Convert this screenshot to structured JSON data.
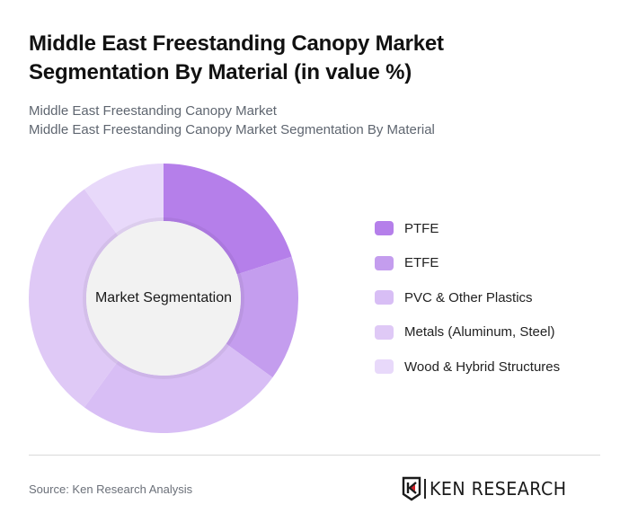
{
  "header": {
    "title": "Middle East Freestanding Canopy Market Segmentation By Material (in value %)",
    "subtitle_line1": "Middle East Freestanding Canopy Market",
    "subtitle_line2": "Middle East Freestanding Canopy Market Segmentation By Material"
  },
  "chart": {
    "center_label": "Market Segmentation"
  },
  "legend": [
    {
      "label": "PTFE",
      "color": "#B57FEA"
    },
    {
      "label": "ETFE",
      "color": "#C49DEE"
    },
    {
      "label": "PVC & Other Plastics",
      "color": "#D8BEF5"
    },
    {
      "label": "Metals (Aluminum, Steel)",
      "color": "#DFC9F6"
    },
    {
      "label": "Wood & Hybrid Structures",
      "color": "#E8D9FA"
    }
  ],
  "footer": {
    "source": "Source: Ken Research Analysis",
    "logo_text": "KEN RESEARCH"
  },
  "chart_data": {
    "type": "pie",
    "subtype": "donut",
    "title": "Middle East Freestanding Canopy Market Segmentation By Material (in value %)",
    "center_label": "Market Segmentation",
    "categories": [
      "PTFE",
      "ETFE",
      "PVC & Other Plastics",
      "Metals (Aluminum, Steel)",
      "Wood & Hybrid Structures"
    ],
    "values": [
      20,
      15,
      25,
      30,
      10
    ],
    "colors": [
      "#B57FEA",
      "#C49DEE",
      "#D8BEF5",
      "#DFC9F6",
      "#E8D9FA"
    ],
    "start_angle_deg": 0,
    "direction": "clockwise",
    "legend_position": "right",
    "unit": "%"
  }
}
